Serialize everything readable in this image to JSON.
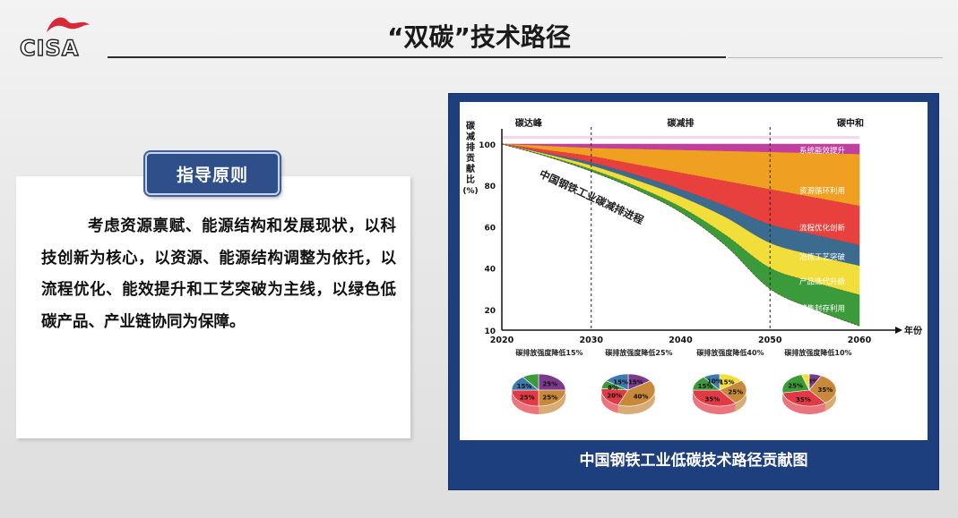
{
  "header": {
    "logo_text": "CISA",
    "title": "“双碳”技术路径"
  },
  "principle": {
    "heading": "指导原则",
    "body": "考虑资源禀赋、能源结构和发展现状，以科技创新为核心，以资源、能源结构调整为依托，以流程优化、能效提升和工艺突破为主线，以绿色低碳产品、产业链协同为保障。"
  },
  "colors": {
    "panel_blue": "#1e3f7e",
    "heading_blue": "#2f4f8a"
  },
  "chart_data": {
    "type": "area",
    "title": "中国钢铁工业低碳技术路径贡献图",
    "ylabel": "碳减排贡献比(%)",
    "xlabel": "年份",
    "ylim": [
      10,
      100
    ],
    "xlim": [
      2020,
      2060
    ],
    "yticks": [
      100,
      80,
      60,
      40,
      20,
      10
    ],
    "xticks": [
      2020,
      2030,
      2040,
      2050,
      2060
    ],
    "phases": [
      {
        "label": "碳达峰",
        "x": 2023
      },
      {
        "label": "碳减排",
        "x": 2040
      },
      {
        "label": "碳中和",
        "x": 2059
      }
    ],
    "phase_dividers": [
      2030,
      2050
    ],
    "curve_label": "中国钢铁工业碳减排进程",
    "x": [
      2020,
      2025,
      2030,
      2035,
      2040,
      2045,
      2050,
      2055,
      2060
    ],
    "series": [
      {
        "name": "系统能效提升",
        "color": "#c23fa0",
        "upper": [
          100,
          100,
          100,
          100,
          100,
          100,
          100,
          100,
          100
        ],
        "lower": [
          100,
          99,
          98,
          97.5,
          97,
          96.5,
          96,
          95.5,
          95
        ]
      },
      {
        "name": "资源循环利用",
        "color": "#f0a020",
        "upper": [
          100,
          99,
          98,
          97.5,
          97,
          96.5,
          96,
          95.5,
          95
        ],
        "lower": [
          100,
          97,
          94,
          90,
          86,
          82,
          78,
          74,
          70
        ]
      },
      {
        "name": "流程优化创新",
        "color": "#e8403c",
        "upper": [
          100,
          97,
          94,
          90,
          86,
          82,
          78,
          74,
          70
        ],
        "lower": [
          100,
          95.5,
          91,
          85,
          78,
          70,
          61,
          56,
          51
        ]
      },
      {
        "name": "冶炼工艺突破",
        "color": "#3c6b90",
        "upper": [
          100,
          95.5,
          91,
          85,
          78,
          70,
          61,
          56,
          51
        ],
        "lower": [
          100,
          95,
          89.5,
          82.5,
          74.5,
          64.5,
          52,
          46,
          41
        ]
      },
      {
        "name": "产品迭代升级",
        "color": "#f2de3a",
        "upper": [
          100,
          95,
          89.5,
          82.5,
          74.5,
          64.5,
          52,
          46,
          41
        ],
        "lower": [
          100,
          94.3,
          87.7,
          79.5,
          69.5,
          56,
          40,
          33,
          27
        ]
      },
      {
        "name": "捕集封存利用",
        "color": "#3b9a3a",
        "upper": [
          100,
          94.3,
          87.7,
          79.5,
          69.5,
          56,
          40,
          33,
          27
        ],
        "lower": [
          100,
          94,
          86.8,
          78,
          67,
          51,
          30,
          20,
          12
        ]
      }
    ],
    "intensity_labels": [
      "碳排放强度降低15%",
      "碳排放强度降低25%",
      "碳排放强度降低40%",
      "碳排放强度降低10%"
    ],
    "pies": [
      {
        "slices": [
          {
            "label": "25%",
            "value": 25,
            "color": "#7b3a8c"
          },
          {
            "label": "25%",
            "value": 25,
            "color": "#c9893a"
          },
          {
            "label": "25%",
            "value": 25,
            "color": "#e23a44"
          },
          {
            "label": "15%",
            "value": 15,
            "color": "#3e7ab0"
          },
          {
            "label": "",
            "value": 10,
            "color": "#3b9a3a"
          }
        ]
      },
      {
        "slices": [
          {
            "label": "15%",
            "value": 15,
            "color": "#7b3a8c"
          },
          {
            "label": "40%",
            "value": 40,
            "color": "#c9893a"
          },
          {
            "label": "20%",
            "value": 20,
            "color": "#e23a44"
          },
          {
            "label": "8%",
            "value": 8,
            "color": "#3b9a3a"
          },
          {
            "label": "15%",
            "value": 15,
            "color": "#3e7ab0"
          }
        ]
      },
      {
        "slices": [
          {
            "label": "15%",
            "value": 15,
            "color": "#f2de3a"
          },
          {
            "label": "25%",
            "value": 25,
            "color": "#c9893a"
          },
          {
            "label": "35%",
            "value": 35,
            "color": "#e23a44"
          },
          {
            "label": "15%",
            "value": 15,
            "color": "#3b9a3a"
          },
          {
            "label": "10%",
            "value": 10,
            "color": "#3e7ab0"
          }
        ]
      },
      {
        "slices": [
          {
            "label": "8%",
            "value": 8,
            "color": "#7b3a8c"
          },
          {
            "label": "35%",
            "value": 35,
            "color": "#c9893a"
          },
          {
            "label": "35%",
            "value": 35,
            "color": "#e23a44"
          },
          {
            "label": "25%",
            "value": 25,
            "color": "#3b9a3a"
          },
          {
            "label": "",
            "value": 5,
            "color": "#f2de3a"
          }
        ]
      }
    ]
  }
}
